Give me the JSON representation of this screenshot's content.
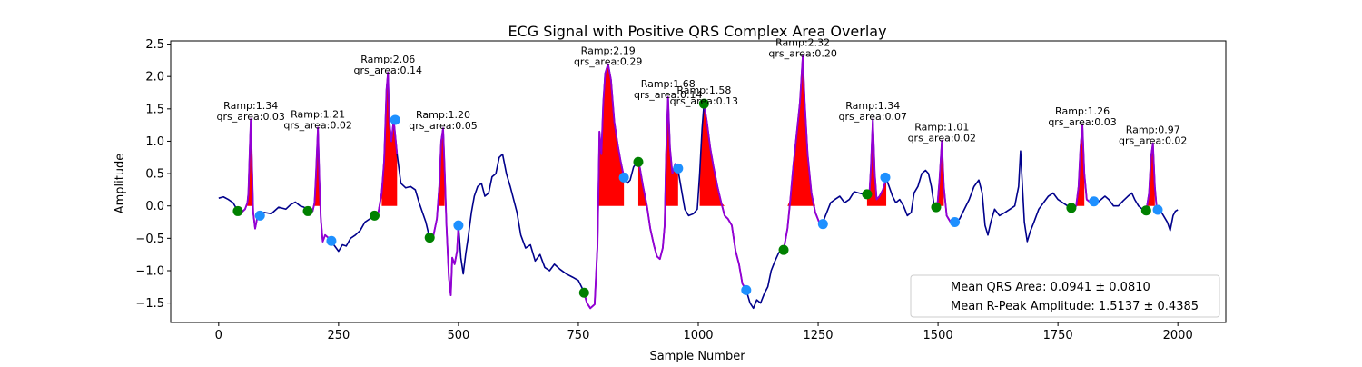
{
  "chart_data": {
    "type": "line",
    "title": "ECG Signal with Positive QRS Complex Area Overlay",
    "xlabel": "Sample Number",
    "ylabel": "Amplitude",
    "xlim": [
      -100,
      2100
    ],
    "ylim": [
      -1.8,
      2.55
    ],
    "xticks": [
      0,
      250,
      500,
      750,
      1000,
      1250,
      1500,
      1750,
      2000
    ],
    "yticks": [
      -1.5,
      -1.0,
      -0.5,
      0.0,
      0.5,
      1.0,
      1.5,
      2.0,
      2.5
    ],
    "grid": false,
    "colors": {
      "signal": "#00008b",
      "qrs_segment": "#9400d3",
      "area_fill": "#ff0000",
      "onset_marker": "#008000",
      "offset_marker": "#1e90ff"
    },
    "signal_points": [
      [
        0,
        0.12
      ],
      [
        10,
        0.14
      ],
      [
        20,
        0.1
      ],
      [
        30,
        0.05
      ],
      [
        40,
        -0.08
      ],
      [
        48,
        -0.1
      ],
      [
        55,
        -0.05
      ],
      [
        60,
        0.05
      ],
      [
        62,
        0.2
      ],
      [
        65,
        0.9
      ],
      [
        67,
        1.34
      ],
      [
        70,
        0.5
      ],
      [
        72,
        -0.1
      ],
      [
        76,
        -0.35
      ],
      [
        80,
        -0.2
      ],
      [
        86,
        -0.16
      ],
      [
        95,
        -0.1
      ],
      [
        110,
        -0.12
      ],
      [
        125,
        -0.02
      ],
      [
        140,
        -0.05
      ],
      [
        150,
        0.02
      ],
      [
        160,
        0.06
      ],
      [
        170,
        0.0
      ],
      [
        178,
        -0.02
      ],
      [
        188,
        -0.1
      ],
      [
        196,
        -0.08
      ],
      [
        200,
        0.05
      ],
      [
        203,
        0.5
      ],
      [
        207,
        1.21
      ],
      [
        210,
        0.4
      ],
      [
        213,
        -0.2
      ],
      [
        217,
        -0.55
      ],
      [
        222,
        -0.45
      ],
      [
        230,
        -0.5
      ],
      [
        235,
        -0.55
      ],
      [
        242,
        -0.62
      ],
      [
        250,
        -0.7
      ],
      [
        258,
        -0.6
      ],
      [
        266,
        -0.62
      ],
      [
        275,
        -0.5
      ],
      [
        285,
        -0.45
      ],
      [
        295,
        -0.38
      ],
      [
        305,
        -0.25
      ],
      [
        315,
        -0.2
      ],
      [
        325,
        -0.15
      ],
      [
        333,
        -0.1
      ],
      [
        340,
        0.2
      ],
      [
        345,
        0.7
      ],
      [
        350,
        1.8
      ],
      [
        353,
        2.06
      ],
      [
        356,
        1.3
      ],
      [
        360,
        1.0
      ],
      [
        365,
        1.33
      ],
      [
        372,
        0.8
      ],
      [
        380,
        0.35
      ],
      [
        390,
        0.28
      ],
      [
        400,
        0.3
      ],
      [
        410,
        0.25
      ],
      [
        418,
        0.05
      ],
      [
        425,
        -0.1
      ],
      [
        432,
        -0.25
      ],
      [
        440,
        -0.5
      ],
      [
        448,
        -0.45
      ],
      [
        455,
        -0.2
      ],
      [
        460,
        0.3
      ],
      [
        464,
        1.0
      ],
      [
        468,
        1.2
      ],
      [
        471,
        0.6
      ],
      [
        475,
        -0.3
      ],
      [
        480,
        -1.1
      ],
      [
        484,
        -1.38
      ],
      [
        487,
        -0.8
      ],
      [
        492,
        -0.9
      ],
      [
        497,
        -0.7
      ],
      [
        500,
        -0.3
      ],
      [
        505,
        -0.8
      ],
      [
        510,
        -1.05
      ],
      [
        515,
        -0.75
      ],
      [
        520,
        -0.5
      ],
      [
        527,
        -0.1
      ],
      [
        533,
        0.15
      ],
      [
        540,
        0.3
      ],
      [
        548,
        0.35
      ],
      [
        555,
        0.15
      ],
      [
        563,
        0.2
      ],
      [
        570,
        0.45
      ],
      [
        578,
        0.5
      ],
      [
        585,
        0.75
      ],
      [
        592,
        0.8
      ],
      [
        600,
        0.5
      ],
      [
        608,
        0.3
      ],
      [
        615,
        0.1
      ],
      [
        622,
        -0.1
      ],
      [
        630,
        -0.45
      ],
      [
        640,
        -0.65
      ],
      [
        650,
        -0.6
      ],
      [
        660,
        -0.85
      ],
      [
        670,
        -0.75
      ],
      [
        680,
        -0.95
      ],
      [
        690,
        -1.0
      ],
      [
        700,
        -0.9
      ],
      [
        712,
        -0.98
      ],
      [
        725,
        -1.05
      ],
      [
        738,
        -1.1
      ],
      [
        750,
        -1.15
      ],
      [
        760,
        -1.3
      ],
      [
        768,
        -1.5
      ],
      [
        775,
        -1.58
      ],
      [
        784,
        -1.52
      ],
      [
        790,
        -0.6
      ],
      [
        794,
        1.15
      ],
      [
        798,
        0.8
      ],
      [
        802,
        1.6
      ],
      [
        806,
        2.05
      ],
      [
        812,
        2.19
      ],
      [
        818,
        1.95
      ],
      [
        825,
        1.3
      ],
      [
        832,
        0.95
      ],
      [
        838,
        0.7
      ],
      [
        845,
        0.45
      ],
      [
        852,
        0.35
      ],
      [
        858,
        0.4
      ],
      [
        865,
        0.6
      ],
      [
        872,
        0.68
      ],
      [
        878,
        0.6
      ],
      [
        885,
        0.3
      ],
      [
        893,
        0.0
      ],
      [
        900,
        -0.35
      ],
      [
        908,
        -0.62
      ],
      [
        914,
        -0.78
      ],
      [
        920,
        -0.82
      ],
      [
        926,
        -0.65
      ],
      [
        930,
        -0.3
      ],
      [
        933,
        0.8
      ],
      [
        937,
        1.68
      ],
      [
        941,
        0.9
      ],
      [
        946,
        0.5
      ],
      [
        952,
        0.65
      ],
      [
        958,
        0.55
      ],
      [
        965,
        0.25
      ],
      [
        972,
        -0.05
      ],
      [
        980,
        -0.15
      ],
      [
        990,
        -0.12
      ],
      [
        998,
        -0.05
      ],
      [
        1003,
        0.5
      ],
      [
        1008,
        1.2
      ],
      [
        1012,
        1.58
      ],
      [
        1018,
        1.3
      ],
      [
        1025,
        0.9
      ],
      [
        1032,
        0.6
      ],
      [
        1040,
        0.3
      ],
      [
        1048,
        0.05
      ],
      [
        1055,
        -0.15
      ],
      [
        1062,
        -0.2
      ],
      [
        1070,
        -0.3
      ],
      [
        1078,
        -0.7
      ],
      [
        1085,
        -0.9
      ],
      [
        1092,
        -1.2
      ],
      [
        1100,
        -1.3
      ],
      [
        1108,
        -1.5
      ],
      [
        1115,
        -1.58
      ],
      [
        1122,
        -1.45
      ],
      [
        1130,
        -1.5
      ],
      [
        1138,
        -1.35
      ],
      [
        1145,
        -1.25
      ],
      [
        1152,
        -1.0
      ],
      [
        1160,
        -0.85
      ],
      [
        1168,
        -0.72
      ],
      [
        1178,
        -0.68
      ],
      [
        1186,
        -0.35
      ],
      [
        1192,
        0.1
      ],
      [
        1198,
        0.6
      ],
      [
        1205,
        1.1
      ],
      [
        1212,
        1.6
      ],
      [
        1218,
        2.32
      ],
      [
        1222,
        1.6
      ],
      [
        1228,
        0.8
      ],
      [
        1236,
        0.2
      ],
      [
        1244,
        -0.1
      ],
      [
        1252,
        -0.25
      ],
      [
        1260,
        -0.25
      ],
      [
        1268,
        -0.1
      ],
      [
        1276,
        0.05
      ],
      [
        1285,
        0.1
      ],
      [
        1295,
        0.15
      ],
      [
        1305,
        0.05
      ],
      [
        1315,
        0.1
      ],
      [
        1325,
        0.22
      ],
      [
        1335,
        0.2
      ],
      [
        1345,
        0.18
      ],
      [
        1352,
        0.18
      ],
      [
        1357,
        0.2
      ],
      [
        1360,
        0.6
      ],
      [
        1364,
        1.34
      ],
      [
        1368,
        0.5
      ],
      [
        1372,
        0.1
      ],
      [
        1378,
        0.15
      ],
      [
        1385,
        0.25
      ],
      [
        1392,
        0.42
      ],
      [
        1398,
        0.3
      ],
      [
        1405,
        0.15
      ],
      [
        1412,
        0.05
      ],
      [
        1420,
        0.1
      ],
      [
        1428,
        0.0
      ],
      [
        1436,
        -0.15
      ],
      [
        1444,
        -0.1
      ],
      [
        1450,
        0.2
      ],
      [
        1458,
        0.3
      ],
      [
        1466,
        0.5
      ],
      [
        1474,
        0.55
      ],
      [
        1480,
        0.5
      ],
      [
        1486,
        0.3
      ],
      [
        1492,
        0.0
      ],
      [
        1498,
        -0.05
      ],
      [
        1503,
        0.4
      ],
      [
        1508,
        1.01
      ],
      [
        1512,
        0.3
      ],
      [
        1518,
        -0.15
      ],
      [
        1526,
        -0.25
      ],
      [
        1535,
        -0.25
      ],
      [
        1545,
        -0.2
      ],
      [
        1555,
        -0.05
      ],
      [
        1565,
        0.1
      ],
      [
        1575,
        0.3
      ],
      [
        1585,
        0.4
      ],
      [
        1592,
        0.2
      ],
      [
        1598,
        -0.3
      ],
      [
        1604,
        -0.45
      ],
      [
        1610,
        -0.25
      ],
      [
        1618,
        -0.05
      ],
      [
        1628,
        -0.15
      ],
      [
        1640,
        -0.1
      ],
      [
        1650,
        -0.05
      ],
      [
        1660,
        0.0
      ],
      [
        1668,
        0.3
      ],
      [
        1672,
        0.85
      ],
      [
        1676,
        0.3
      ],
      [
        1680,
        -0.25
      ],
      [
        1686,
        -0.55
      ],
      [
        1692,
        -0.4
      ],
      [
        1700,
        -0.25
      ],
      [
        1710,
        -0.05
      ],
      [
        1720,
        0.05
      ],
      [
        1730,
        0.15
      ],
      [
        1740,
        0.2
      ],
      [
        1750,
        0.1
      ],
      [
        1760,
        0.05
      ],
      [
        1770,
        0.0
      ],
      [
        1778,
        -0.03
      ],
      [
        1788,
        0.0
      ],
      [
        1793,
        0.3
      ],
      [
        1797,
        0.9
      ],
      [
        1801,
        1.26
      ],
      [
        1805,
        0.5
      ],
      [
        1810,
        0.1
      ],
      [
        1818,
        0.05
      ],
      [
        1825,
        0.08
      ],
      [
        1832,
        0.05
      ],
      [
        1840,
        0.1
      ],
      [
        1848,
        0.15
      ],
      [
        1856,
        0.1
      ],
      [
        1866,
        0.0
      ],
      [
        1876,
        0.0
      ],
      [
        1886,
        0.08
      ],
      [
        1896,
        0.15
      ],
      [
        1904,
        0.2
      ],
      [
        1910,
        0.1
      ],
      [
        1918,
        0.0
      ],
      [
        1926,
        -0.05
      ],
      [
        1934,
        -0.08
      ],
      [
        1940,
        0.2
      ],
      [
        1944,
        0.75
      ],
      [
        1948,
        0.97
      ],
      [
        1952,
        0.3
      ],
      [
        1956,
        -0.05
      ],
      [
        1962,
        -0.05
      ],
      [
        1970,
        -0.15
      ],
      [
        1978,
        -0.25
      ],
      [
        1984,
        -0.38
      ],
      [
        1990,
        -0.15
      ],
      [
        1995,
        -0.08
      ],
      [
        2000,
        -0.06
      ]
    ],
    "qrs_segments": [
      [
        40,
        86
      ],
      [
        188,
        235
      ],
      [
        325,
        372
      ],
      [
        440,
        500
      ],
      [
        762,
        845
      ],
      [
        875,
        958
      ],
      [
        1012,
        1100
      ],
      [
        1178,
        1260
      ],
      [
        1352,
        1390
      ],
      [
        1496,
        1535
      ],
      [
        1778,
        1825
      ],
      [
        1934,
        1958
      ]
    ],
    "area_fills": [
      [
        60,
        72
      ],
      [
        200,
        213
      ],
      [
        340,
        372
      ],
      [
        460,
        471
      ],
      [
        790,
        845
      ],
      [
        875,
        958
      ],
      [
        1003,
        1055
      ],
      [
        1186,
        1244
      ],
      [
        1352,
        1392
      ],
      [
        1498,
        1512
      ],
      [
        1788,
        1805
      ],
      [
        1934,
        1952
      ]
    ],
    "onset_markers": [
      [
        40,
        -0.08
      ],
      [
        186,
        -0.08
      ],
      [
        325,
        -0.15
      ],
      [
        440,
        -0.49
      ],
      [
        762,
        -1.34
      ],
      [
        875,
        0.68
      ],
      [
        1012,
        1.58
      ],
      [
        1178,
        -0.68
      ],
      [
        1352,
        0.18
      ],
      [
        1496,
        -0.02
      ],
      [
        1778,
        -0.03
      ],
      [
        1934,
        -0.07
      ]
    ],
    "offset_markers": [
      [
        86,
        -0.15
      ],
      [
        235,
        -0.54
      ],
      [
        368,
        1.33
      ],
      [
        500,
        -0.3
      ],
      [
        845,
        0.44
      ],
      [
        958,
        0.58
      ],
      [
        1100,
        -1.3
      ],
      [
        1260,
        -0.28
      ],
      [
        1390,
        0.44
      ],
      [
        1535,
        -0.25
      ],
      [
        1825,
        0.07
      ],
      [
        1958,
        -0.06
      ]
    ],
    "annotations": [
      {
        "x": 67,
        "y": 1.34,
        "ramp": "Ramp:1.34",
        "area": "qrs_area:0.03"
      },
      {
        "x": 207,
        "y": 1.21,
        "ramp": "Ramp:1.21",
        "area": "qrs_area:0.02"
      },
      {
        "x": 353,
        "y": 2.06,
        "ramp": "Ramp:2.06",
        "area": "qrs_area:0.14"
      },
      {
        "x": 468,
        "y": 1.2,
        "ramp": "Ramp:1.20",
        "area": "qrs_area:0.05"
      },
      {
        "x": 812,
        "y": 2.19,
        "ramp": "Ramp:2.19",
        "area": "qrs_area:0.29"
      },
      {
        "x": 937,
        "y": 1.68,
        "ramp": "Ramp:1.68",
        "area": "qrs_area:0.14"
      },
      {
        "x": 1012,
        "y": 1.58,
        "ramp": "Ramp:1.58",
        "area": "qrs_area:0.13"
      },
      {
        "x": 1218,
        "y": 2.32,
        "ramp": "Ramp:2.32",
        "area": "qrs_area:0.20"
      },
      {
        "x": 1364,
        "y": 1.34,
        "ramp": "Ramp:1.34",
        "area": "qrs_area:0.07"
      },
      {
        "x": 1508,
        "y": 1.01,
        "ramp": "Ramp:1.01",
        "area": "qrs_area:0.02"
      },
      {
        "x": 1801,
        "y": 1.26,
        "ramp": "Ramp:1.26",
        "area": "qrs_area:0.03"
      },
      {
        "x": 1948,
        "y": 0.97,
        "ramp": "Ramp:0.97",
        "area": "qrs_area:0.02"
      }
    ],
    "legend": {
      "placement": "lower-right",
      "entries": [
        "Mean QRS Area: 0.0941 ± 0.0810",
        "Mean R-Peak Amplitude: 1.5137 ± 0.4385"
      ]
    }
  }
}
